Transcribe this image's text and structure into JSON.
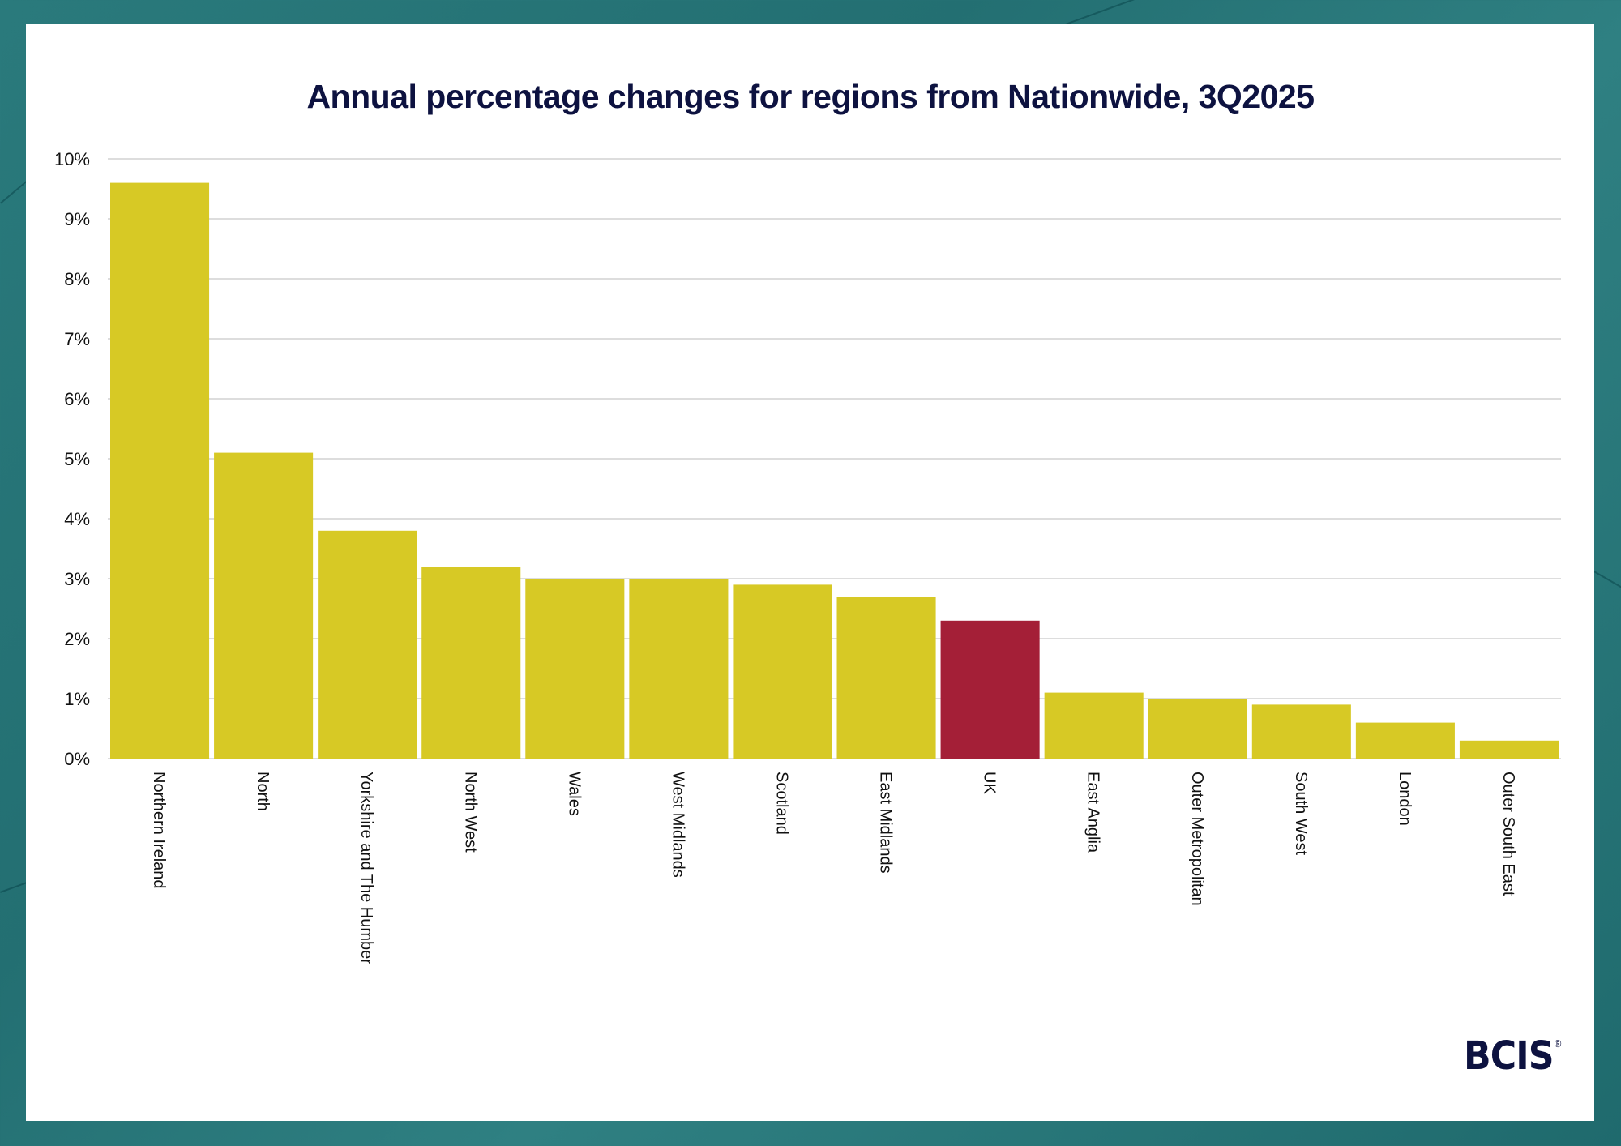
{
  "chart_data": {
    "type": "bar",
    "title": "Annual percentage changes for regions from Nationwide, 3Q2025",
    "xlabel": "",
    "ylabel": "",
    "ylim": [
      0,
      10
    ],
    "yticks": [
      0,
      1,
      2,
      3,
      4,
      5,
      6,
      7,
      8,
      9,
      10
    ],
    "ytick_labels": [
      "0%",
      "1%",
      "2%",
      "3%",
      "4%",
      "5%",
      "6%",
      "7%",
      "8%",
      "9%",
      "10%"
    ],
    "grid": true,
    "categories": [
      "Northern Ireland",
      "North",
      "Yorkshire and The Humber",
      "North West",
      "Wales",
      "West Midlands",
      "Scotland",
      "East Midlands",
      "UK",
      "East Anglia",
      "Outer Metropolitan",
      "South West",
      "London",
      "Outer South East"
    ],
    "values": [
      9.6,
      5.1,
      3.8,
      3.2,
      3.0,
      3.0,
      2.9,
      2.7,
      2.3,
      1.1,
      1.0,
      0.9,
      0.6,
      0.3
    ],
    "highlight": "UK",
    "colors": {
      "bar": "#d7c925",
      "highlight": "#a41f37",
      "grid": "#dddddd",
      "title": "#0d1240",
      "text": "#111111"
    }
  },
  "brand": {
    "logo_text": "BCIS",
    "logo_mark": "®"
  }
}
